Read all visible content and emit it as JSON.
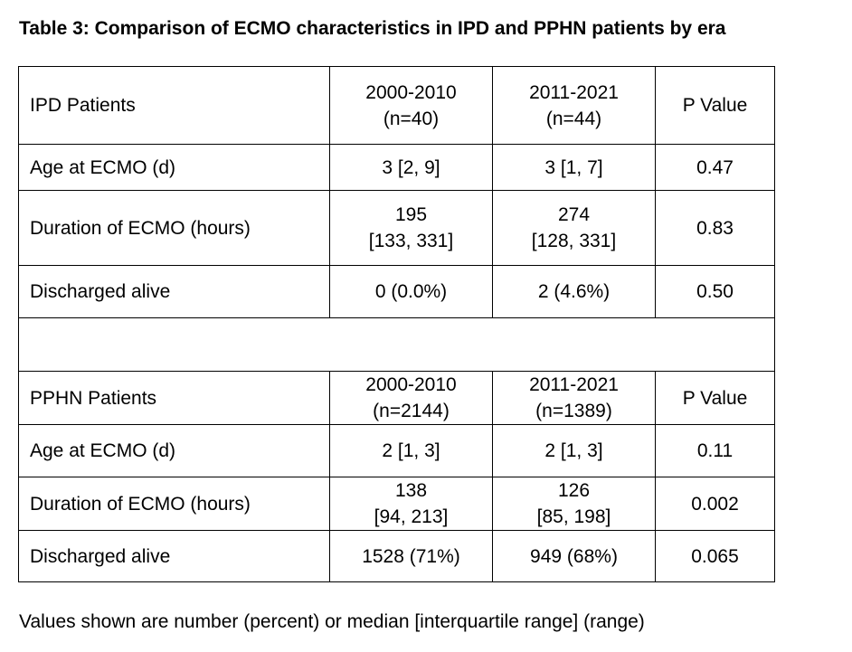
{
  "title": "Table 3: Comparison of ECMO characteristics in IPD and PPHN patients by era",
  "ipd": {
    "header": {
      "label": "IPD Patients",
      "col1_line1": "2000-2010",
      "col1_line2": "(n=40)",
      "col2_line1": "2011-2021",
      "col2_line2": "(n=44)",
      "pvalue": "P Value"
    },
    "rows": [
      {
        "label": "Age at ECMO (d)",
        "c1": "3 [2, 9]",
        "c2": "3 [1, 7]",
        "p": "0.47"
      },
      {
        "label": "Duration of ECMO (hours)",
        "c1_line1": "195",
        "c1_line2": "[133, 331]",
        "c2_line1": "274",
        "c2_line2": "[128, 331]",
        "p": "0.83"
      },
      {
        "label": "Discharged alive",
        "c1": "0 (0.0%)",
        "c2": "2 (4.6%)",
        "p": "0.50"
      }
    ]
  },
  "pphn": {
    "header": {
      "label": "PPHN Patients",
      "col1_line1": "2000-2010",
      "col1_line2": "(n=2144)",
      "col2_line1": "2011-2021",
      "col2_line2": "(n=1389)",
      "pvalue": "P Value"
    },
    "rows": [
      {
        "label": "Age at ECMO (d)",
        "c1": "2 [1, 3]",
        "c2": "2 [1, 3]",
        "p": "0.11"
      },
      {
        "label": "Duration of ECMO (hours)",
        "c1_line1": "138",
        "c1_line2": "[94, 213]",
        "c2_line1": "126",
        "c2_line2": "[85, 198]",
        "p": "0.002"
      },
      {
        "label": "Discharged alive",
        "c1": "1528 (71%)",
        "c2": "949 (68%)",
        "p": "0.065"
      }
    ]
  },
  "footnote": "Values shown are number (percent) or median [interquartile range] (range)"
}
